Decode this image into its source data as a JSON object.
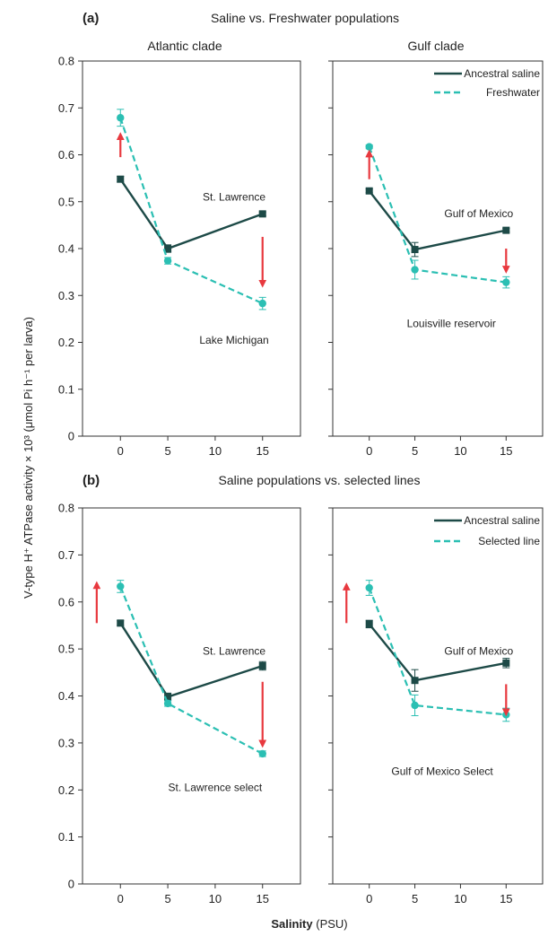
{
  "figure": {
    "row_a_letter": "(a)",
    "row_a_title": "Saline vs. Freshwater populations",
    "row_b_letter": "(b)",
    "row_b_title": "Saline populations vs. selected lines",
    "clade_left": "Atlantic clade",
    "clade_right": "Gulf clade",
    "ylabel": "V-type H⁺ ATPase activity × 10³ (μmol Pi h⁻¹ per larva)",
    "xlabel_bold": "Salinity",
    "xlabel_rest": " (PSU)"
  },
  "colors": {
    "ancestral": "#1d4a47",
    "treatment": "#2bbfb3",
    "arrow": "#e8393f",
    "frame": "#333333"
  },
  "chart_data": [
    {
      "type": "line",
      "panel": "a-left",
      "x": [
        0,
        5,
        15
      ],
      "xticks": [
        0,
        5,
        10,
        15
      ],
      "xlim": [
        -4,
        19
      ],
      "ylim": [
        0,
        0.8
      ],
      "yticks": [
        0,
        0.1,
        0.2,
        0.3,
        0.4,
        0.5,
        0.6,
        0.7,
        0.8
      ],
      "series": [
        {
          "values": [
            0.548,
            0.4,
            0.474
          ],
          "errors": [
            0.006,
            0.008,
            0.004
          ],
          "style": "solid"
        },
        {
          "values": [
            0.679,
            0.374,
            0.283
          ],
          "errors": [
            0.018,
            0.007,
            0.013
          ],
          "style": "dashed"
        }
      ],
      "arrows": [
        [
          0,
          0.595,
          0.64
        ],
        [
          15,
          0.425,
          0.325
        ]
      ],
      "annotations": [
        {
          "text": "St. Lawrence",
          "x": 12,
          "y": 0.51
        },
        {
          "text": "Lake Michigan",
          "x": 12,
          "y": 0.205
        }
      ]
    },
    {
      "type": "line",
      "panel": "a-right",
      "x": [
        0,
        5,
        15
      ],
      "xticks": [
        0,
        5,
        10,
        15
      ],
      "xlim": [
        -4,
        19
      ],
      "ylim": [
        0,
        0.8
      ],
      "series": [
        {
          "values": [
            0.523,
            0.398,
            0.439
          ],
          "errors": [
            0.004,
            0.015,
            0.004
          ],
          "style": "solid"
        },
        {
          "values": [
            0.617,
            0.355,
            0.328
          ],
          "errors": [
            0.004,
            0.02,
            0.012
          ],
          "style": "dashed"
        }
      ],
      "arrows": [
        [
          0,
          0.548,
          0.603
        ],
        [
          15,
          0.4,
          0.355
        ]
      ],
      "annotations": [
        {
          "text": "Gulf of Mexico",
          "x": 12,
          "y": 0.475
        },
        {
          "text": "Louisville reservoir",
          "x": 9,
          "y": 0.24
        }
      ],
      "legend": {
        "position": "top-right",
        "entries": [
          "Ancestral saline",
          "Freshwater"
        ]
      }
    },
    {
      "type": "line",
      "panel": "b-left",
      "x": [
        0,
        5,
        15
      ],
      "xticks": [
        0,
        5,
        10,
        15
      ],
      "xlim": [
        -4,
        19
      ],
      "ylim": [
        0,
        0.8
      ],
      "yticks": [
        0,
        0.1,
        0.2,
        0.3,
        0.4,
        0.5,
        0.6,
        0.7,
        0.8
      ],
      "series": [
        {
          "values": [
            0.555,
            0.398,
            0.464
          ],
          "errors": [
            0.005,
            0.008,
            0.009
          ],
          "style": "solid"
        },
        {
          "values": [
            0.633,
            0.384,
            0.277
          ],
          "errors": [
            0.013,
            0.006,
            0.006
          ],
          "style": "dashed"
        }
      ],
      "arrows": [
        [
          -2.5,
          0.555,
          0.636
        ],
        [
          15,
          0.43,
          0.298
        ]
      ],
      "annotations": [
        {
          "text": "St. Lawrence",
          "x": 12,
          "y": 0.495
        },
        {
          "text": "St. Lawrence select",
          "x": 10,
          "y": 0.205
        }
      ]
    },
    {
      "type": "line",
      "panel": "b-right",
      "x": [
        0,
        5,
        15
      ],
      "xticks": [
        0,
        5,
        10,
        15
      ],
      "xlim": [
        -4,
        19
      ],
      "ylim": [
        0,
        0.8
      ],
      "series": [
        {
          "values": [
            0.553,
            0.433,
            0.47
          ],
          "errors": [
            0.008,
            0.023,
            0.01
          ],
          "style": "solid"
        },
        {
          "values": [
            0.63,
            0.38,
            0.36
          ],
          "errors": [
            0.016,
            0.022,
            0.014
          ],
          "style": "dashed"
        }
      ],
      "arrows": [
        [
          -2.5,
          0.555,
          0.633
        ],
        [
          15,
          0.425,
          0.365
        ]
      ],
      "annotations": [
        {
          "text": "Gulf of Mexico",
          "x": 12,
          "y": 0.495
        },
        {
          "text": "Gulf of Mexico Select",
          "x": 8,
          "y": 0.24
        }
      ],
      "legend": {
        "position": "top-right",
        "entries": [
          "Ancestral saline",
          "Selected line"
        ]
      }
    }
  ]
}
